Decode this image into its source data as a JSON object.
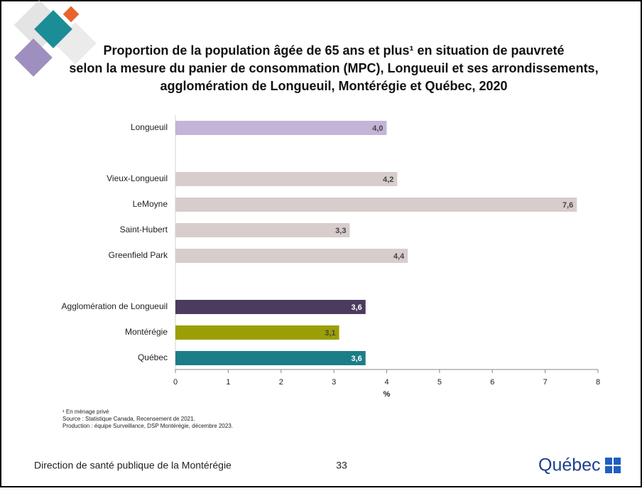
{
  "chart_data": {
    "type": "bar",
    "orientation": "horizontal",
    "title": [
      "Proportion de la population âgée de 65 ans et plus¹ en situation de pauvreté",
      "selon la mesure du panier de consommation (MPC), Longueuil et ses arrondissements,",
      "agglomération de Longueuil, Montérégie et Québec, 2020"
    ],
    "categories": [
      "Longueuil",
      null,
      "Vieux-Longueuil",
      "LeMoyne",
      "Saint-Hubert",
      "Greenfield Park",
      null,
      "Agglomération de Longueuil",
      "Montérégie",
      "Québec"
    ],
    "values": [
      4.0,
      null,
      4.2,
      7.6,
      3.3,
      4.4,
      null,
      3.6,
      3.1,
      3.6
    ],
    "value_labels": [
      "4,0",
      null,
      "4,2",
      "7,6",
      "3,3",
      "4,4",
      null,
      "3,6",
      "3,1",
      "3,6"
    ],
    "colors": [
      "#c3b4d8",
      null,
      "#d8cdcc",
      "#d8cdcc",
      "#d8cdcc",
      "#d8cdcc",
      null,
      "#4a3b5f",
      "#9b9f05",
      "#1b7d87"
    ],
    "xlabel": "%",
    "xlim": [
      0,
      8
    ],
    "xticks": [
      0,
      1,
      2,
      3,
      4,
      5,
      6,
      7,
      8
    ],
    "grid": false
  },
  "notes": [
    "¹ En ménage privé",
    "Source : Statistique Canada, Recensement de 2021.",
    "Production : équipe Surveillance, DSP Montérégie, décembre 2023."
  ],
  "footer": {
    "organization": "Direction de santé publique de la Montérégie",
    "page": "33",
    "logo": "Québec"
  }
}
